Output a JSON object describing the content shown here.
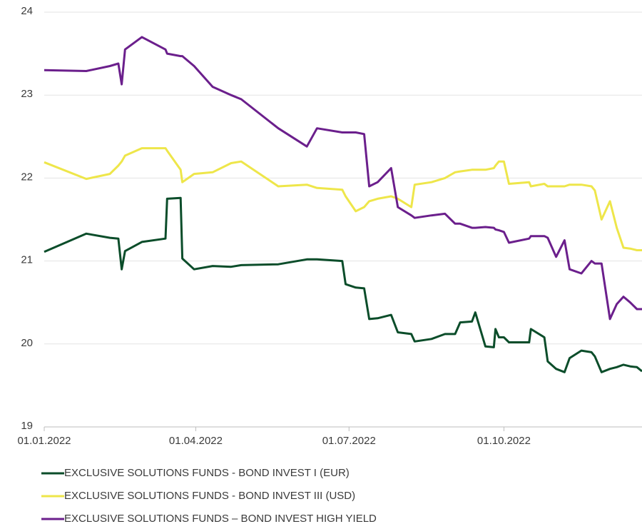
{
  "chart_data": {
    "type": "line",
    "x": [
      "2022-01-01",
      "2022-01-26",
      "2022-02-09",
      "2022-02-14",
      "2022-02-16",
      "2022-02-18",
      "2022-02-28",
      "2022-03-14",
      "2022-03-15",
      "2022-03-23",
      "2022-03-24",
      "2022-03-31",
      "2022-04-11",
      "2022-04-22",
      "2022-04-28",
      "2022-05-20",
      "2022-06-06",
      "2022-06-12",
      "2022-06-27",
      "2022-06-29",
      "2022-07-05",
      "2022-07-10",
      "2022-07-13",
      "2022-07-18",
      "2022-07-26",
      "2022-07-30",
      "2022-08-07",
      "2022-08-09",
      "2022-08-19",
      "2022-08-27",
      "2022-09-02",
      "2022-09-05",
      "2022-09-12",
      "2022-09-14",
      "2022-09-20",
      "2022-09-25",
      "2022-09-26",
      "2022-09-28",
      "2022-10-01",
      "2022-10-04",
      "2022-10-16",
      "2022-10-17",
      "2022-10-25",
      "2022-10-27",
      "2022-11-01",
      "2022-11-06",
      "2022-11-09",
      "2022-11-16",
      "2022-11-22",
      "2022-11-24",
      "2022-11-28",
      "2022-12-03",
      "2022-12-07",
      "2022-12-11",
      "2022-12-15",
      "2022-12-19",
      "2022-12-22"
    ],
    "series": [
      {
        "name": "EXCLUSIVE SOLUTIONS FUNDS - BOND INVEST I (EUR)",
        "color": "#0b4d2a",
        "values": [
          21.11,
          21.33,
          21.28,
          21.27,
          20.9,
          21.12,
          21.23,
          21.27,
          21.75,
          21.76,
          21.03,
          20.9,
          20.94,
          20.93,
          20.95,
          20.96,
          21.02,
          21.02,
          21.0,
          20.72,
          20.68,
          20.67,
          20.3,
          20.31,
          20.35,
          20.14,
          20.12,
          20.03,
          20.06,
          20.12,
          20.12,
          20.26,
          20.27,
          20.38,
          19.97,
          19.96,
          20.18,
          20.08,
          20.08,
          20.02,
          20.02,
          20.18,
          20.08,
          19.79,
          19.7,
          19.66,
          19.83,
          19.92,
          19.9,
          19.85,
          19.66,
          19.7,
          19.72,
          19.75,
          19.73,
          19.72,
          19.67
        ]
      },
      {
        "name": "EXCLUSIVE SOLUTIONS FUNDS - BOND INVEST III (USD)",
        "color": "#eee64a",
        "values": [
          22.19,
          21.99,
          22.05,
          22.15,
          22.2,
          22.27,
          22.36,
          22.36,
          22.33,
          22.1,
          21.95,
          22.05,
          22.07,
          22.18,
          22.2,
          21.9,
          21.92,
          21.88,
          21.86,
          21.78,
          21.6,
          21.65,
          21.72,
          21.75,
          21.78,
          21.75,
          21.65,
          21.92,
          21.95,
          22.0,
          22.07,
          22.08,
          22.1,
          22.1,
          22.1,
          22.12,
          22.15,
          22.2,
          22.2,
          21.93,
          21.95,
          21.9,
          21.93,
          21.9,
          21.9,
          21.9,
          21.92,
          21.92,
          21.9,
          21.85,
          21.5,
          21.72,
          21.4,
          21.16,
          21.15,
          21.13,
          21.13
        ]
      },
      {
        "name": "EXCLUSIVE SOLUTIONS FUNDS – BOND INVEST HIGH YIELD",
        "color": "#6b1f8c",
        "values": [
          23.3,
          23.29,
          23.35,
          23.38,
          23.13,
          23.55,
          23.7,
          23.55,
          23.5,
          23.47,
          23.47,
          23.35,
          23.1,
          23.0,
          22.95,
          22.6,
          22.38,
          22.6,
          22.55,
          22.55,
          22.55,
          22.53,
          21.9,
          21.95,
          22.12,
          21.65,
          21.55,
          21.52,
          21.55,
          21.57,
          21.45,
          21.45,
          21.4,
          21.4,
          21.41,
          21.4,
          21.38,
          21.37,
          21.35,
          21.22,
          21.27,
          21.3,
          21.3,
          21.28,
          21.05,
          21.25,
          20.9,
          20.85,
          21.0,
          20.97,
          20.97,
          20.3,
          20.48,
          20.57,
          20.5,
          20.42,
          20.42
        ]
      }
    ],
    "xlim": [
      "2022-01-01",
      "2022-12-22"
    ],
    "xticks": [
      {
        "value": "2022-01-01",
        "label": "01.01.2022"
      },
      {
        "value": "2022-04-01",
        "label": "01.04.2022"
      },
      {
        "value": "2022-07-01",
        "label": "01.07.2022"
      },
      {
        "value": "2022-10-01",
        "label": "01.10.2022"
      }
    ],
    "ylim": [
      19,
      24
    ],
    "yticks": [
      19,
      20,
      21,
      22,
      23,
      24
    ],
    "grid": true,
    "legend": "bottom"
  }
}
